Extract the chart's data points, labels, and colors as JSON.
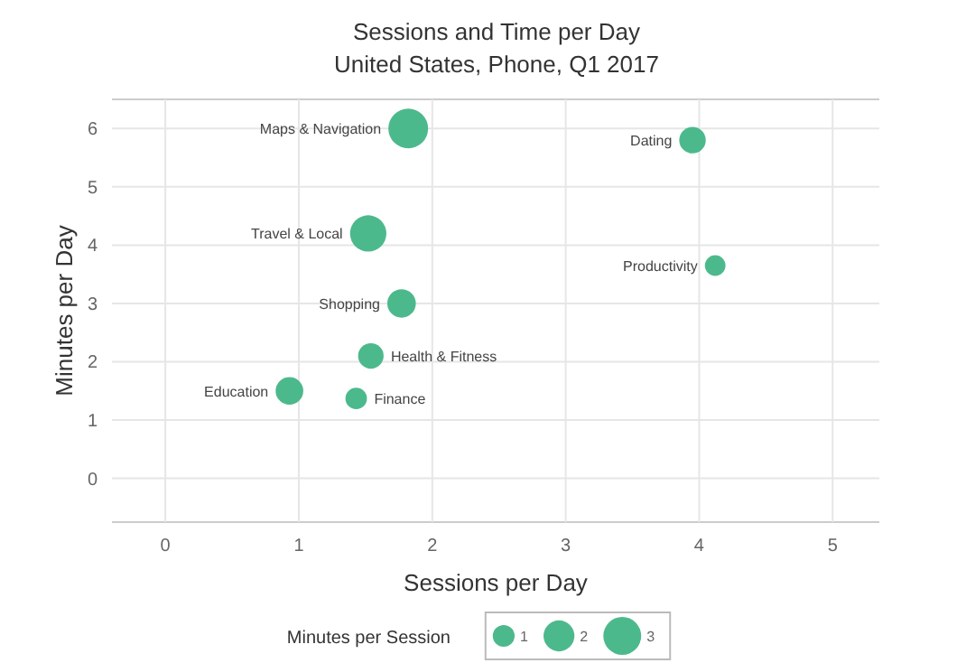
{
  "chart_data": {
    "type": "bubble",
    "title": "Sessions and Time per Day",
    "subtitle": "United States, Phone, Q1 2017",
    "xlabel": "Sessions per Day",
    "ylabel": "Minutes per Day",
    "legend_title": "Minutes per Session",
    "x": [
      1.82,
      3.95,
      1.52,
      4.12,
      1.77,
      1.54,
      0.93,
      1.43
    ],
    "values": [
      6.0,
      5.8,
      4.2,
      3.65,
      3.0,
      2.1,
      1.5,
      1.37
    ],
    "sizes": [
      3.3,
      1.47,
      2.76,
      0.89,
      1.7,
      1.36,
      1.6,
      0.96
    ],
    "size_legend": [
      1,
      2,
      3
    ],
    "color": "#4cb98c",
    "annotations": [
      {
        "text": "Maps & Navigation",
        "x": 1.82,
        "y": 6.0
      },
      {
        "text": "Dating",
        "x": 3.95,
        "y": 5.8
      },
      {
        "text": "Travel & Local",
        "x": 1.52,
        "y": 4.2
      },
      {
        "text": "Productivity",
        "x": 4.12,
        "y": 3.65
      },
      {
        "text": "Shopping",
        "x": 1.77,
        "y": 3.0
      },
      {
        "text": "Health & Fitness",
        "x": 1.54,
        "y": 2.1
      },
      {
        "text": "Education",
        "x": 0.93,
        "y": 1.5
      },
      {
        "text": "Finance",
        "x": 1.43,
        "y": 1.37
      }
    ],
    "xlim": [
      -0.4,
      5.35
    ],
    "ylim": [
      -0.75,
      6.5
    ],
    "xticks": [
      0,
      1,
      2,
      3,
      4,
      5
    ],
    "yticks": [
      0,
      1,
      2,
      3,
      4,
      5,
      6
    ],
    "grid": true
  }
}
